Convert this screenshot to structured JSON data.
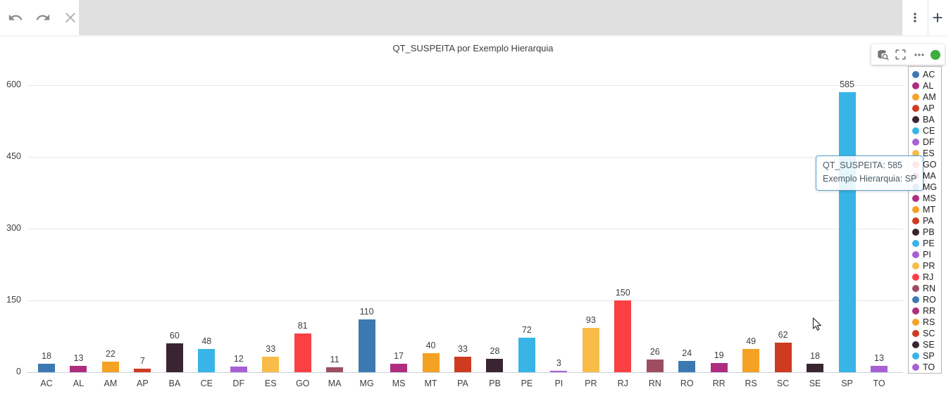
{
  "topbar": {
    "icons": [
      "undo-icon",
      "redo-icon",
      "close-icon",
      "kebab-menu-icon",
      "plus-icon"
    ]
  },
  "chart": {
    "title": "QT_SUSPEITA por Exemplo Hierarquia"
  },
  "hover_toolbar": {
    "icons": [
      "explore-data-icon",
      "fullscreen-icon",
      "more-options-icon",
      "status-dot"
    ],
    "status_color": "#3fae41"
  },
  "chart_data": {
    "type": "bar",
    "title": "QT_SUSPEITA por Exemplo Hierarquia",
    "categories": [
      "AC",
      "AL",
      "AM",
      "AP",
      "BA",
      "CE",
      "DF",
      "ES",
      "GO",
      "MA",
      "MG",
      "MS",
      "MT",
      "PA",
      "PB",
      "PE",
      "PI",
      "PR",
      "RJ",
      "RN",
      "RO",
      "RR",
      "RS",
      "SC",
      "SE",
      "SP",
      "TO"
    ],
    "values": [
      18,
      13,
      22,
      7,
      60,
      48,
      12,
      33,
      81,
      11,
      110,
      17,
      40,
      33,
      28,
      72,
      3,
      93,
      150,
      26,
      24,
      19,
      49,
      62,
      18,
      585,
      13
    ],
    "xlabel": "",
    "ylabel": "",
    "ylim": [
      0,
      600
    ],
    "yticks": [
      0,
      150,
      300,
      450,
      600
    ],
    "grid": true,
    "value_labels": true,
    "legend_position": "right",
    "palette": [
      "#3C79B2",
      "#AF2D7F",
      "#F4A224",
      "#CE3B21",
      "#3B2431",
      "#38B4E6",
      "#A861D4",
      "#F9BC49",
      "#FA4043",
      "#9E4D61"
    ]
  },
  "tooltip": {
    "lines": [
      "QT_SUSPEITA: 585",
      "Exemplo Hierarquia: SP"
    ],
    "border_color": "#59a6d2"
  }
}
